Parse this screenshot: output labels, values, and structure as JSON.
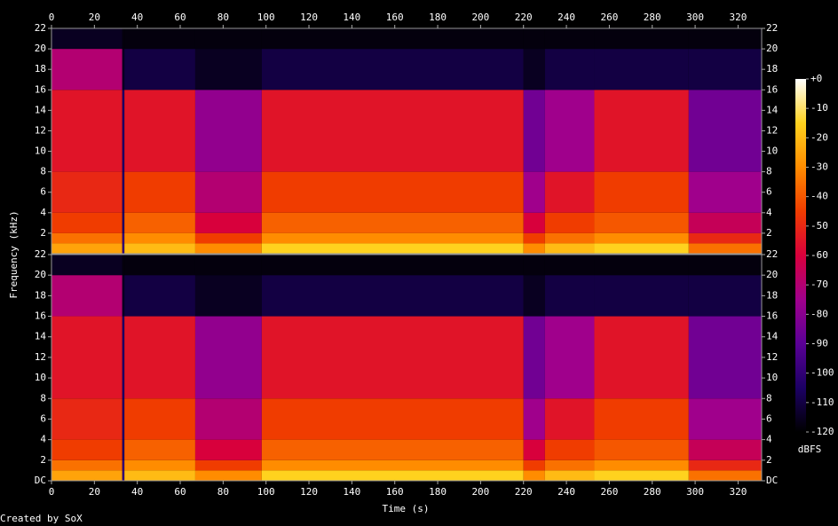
{
  "chart_data": [
    {
      "type": "heatmap",
      "xlim": [
        0,
        331
      ],
      "xticks": [
        0,
        20,
        40,
        60,
        80,
        100,
        120,
        140,
        160,
        180,
        200,
        220,
        240,
        260,
        280,
        300,
        320
      ],
      "ylim": [
        0,
        22
      ],
      "yticks": [
        2,
        4,
        6,
        8,
        10,
        12,
        14,
        16,
        18,
        20,
        22
      ],
      "x_edges": [
        0,
        33,
        34,
        67,
        98,
        220,
        230,
        253,
        297,
        331
      ],
      "y_edges": [
        0,
        1,
        2,
        4,
        8,
        16,
        20,
        22
      ],
      "z": [
        [
          -25,
          -100,
          -20,
          -30,
          -15,
          -30,
          -20,
          -15,
          -35
        ],
        [
          -35,
          -100,
          -30,
          -45,
          -30,
          -45,
          -35,
          -30,
          -50
        ],
        [
          -45,
          -105,
          -38,
          -60,
          -38,
          -60,
          -45,
          -40,
          -65
        ],
        [
          -50,
          -105,
          -45,
          -70,
          -45,
          -75,
          -55,
          -45,
          -75
        ],
        [
          -55,
          -105,
          -55,
          -78,
          -55,
          -85,
          -75,
          -55,
          -85
        ],
        [
          -70,
          -115,
          -110,
          -115,
          -110,
          -115,
          -110,
          -110,
          -110
        ],
        [
          -115,
          -118,
          -118,
          -118,
          -118,
          -118,
          -118,
          -118,
          -118
        ]
      ]
    },
    {
      "type": "heatmap",
      "xlim": [
        0,
        331
      ],
      "xticks": [
        0,
        20,
        40,
        60,
        80,
        100,
        120,
        140,
        160,
        180,
        200,
        220,
        240,
        260,
        280,
        300,
        320
      ],
      "xlabel": "Time (s)",
      "ylim": [
        0,
        22
      ],
      "yticks": [
        {
          "value": 0,
          "label": "DC"
        },
        2,
        4,
        6,
        8,
        10,
        12,
        14,
        16,
        18,
        20,
        22
      ],
      "x_edges": [
        0,
        33,
        34,
        67,
        98,
        220,
        230,
        253,
        297,
        331
      ],
      "y_edges": [
        0,
        1,
        2,
        4,
        8,
        16,
        20,
        22
      ],
      "z": [
        [
          -25,
          -100,
          -20,
          -30,
          -15,
          -30,
          -20,
          -15,
          -35
        ],
        [
          -35,
          -100,
          -30,
          -45,
          -30,
          -45,
          -35,
          -30,
          -50
        ],
        [
          -45,
          -105,
          -38,
          -60,
          -38,
          -60,
          -45,
          -40,
          -65
        ],
        [
          -50,
          -105,
          -45,
          -70,
          -45,
          -75,
          -55,
          -45,
          -75
        ],
        [
          -55,
          -105,
          -55,
          -78,
          -55,
          -85,
          -75,
          -55,
          -85
        ],
        [
          -70,
          -115,
          -110,
          -115,
          -110,
          -115,
          -110,
          -110,
          -110
        ],
        [
          -115,
          -118,
          -118,
          -118,
          -118,
          -118,
          -118,
          -118,
          -118
        ]
      ]
    }
  ],
  "ylabel": "Frequency (kHz)",
  "colorbar": {
    "label": "dBFS",
    "zlim": [
      -120,
      0
    ],
    "ticks": [
      {
        "value": 0,
        "label": "+0"
      },
      -10,
      -20,
      -30,
      -40,
      -50,
      -60,
      -70,
      -80,
      -90,
      -100,
      -110,
      -120
    ],
    "colors": [
      "#000000",
      "#1c0064",
      "#5a0096",
      "#a0008c",
      "#d8003c",
      "#f03c00",
      "#ff8c00",
      "#ffd21e",
      "#ffffff"
    ]
  },
  "footer": "Created by SoX"
}
